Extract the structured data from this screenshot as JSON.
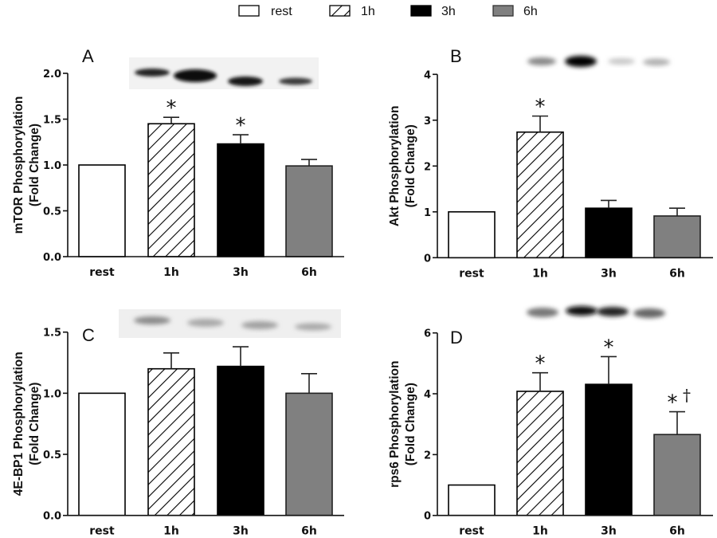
{
  "legend": {
    "items": [
      {
        "label": "rest",
        "fill": "#ffffff",
        "pattern": "none"
      },
      {
        "label": "1h",
        "fill": "#ffffff",
        "pattern": "hatch"
      },
      {
        "label": "3h",
        "fill": "#000000",
        "pattern": "none"
      },
      {
        "label": "6h",
        "fill": "#808080",
        "pattern": "none"
      }
    ],
    "placement": "top-center"
  },
  "chart_data": [
    {
      "type": "bar",
      "panel": "A",
      "title": "",
      "blot_inset": "mTOR western blot bands (rest, 1h, 3h, 6h)",
      "ylabel": [
        "mTOR Phosphorylation",
        "(Fold Change)"
      ],
      "xlabel": "",
      "categories": [
        "rest",
        "1h",
        "3h",
        "6h"
      ],
      "values": [
        1.0,
        1.45,
        1.23,
        0.99
      ],
      "errors": [
        0.0,
        0.07,
        0.1,
        0.07
      ],
      "significance": [
        "",
        "*",
        "*",
        ""
      ],
      "ylim": [
        0,
        2.0
      ],
      "yticks": [
        0.0,
        0.5,
        1.0,
        1.5,
        2.0
      ],
      "ytick_labels": [
        "0.0",
        "0.5",
        "1.0",
        "1.5",
        "2.0"
      ],
      "grid": false
    },
    {
      "type": "bar",
      "panel": "B",
      "title": "",
      "blot_inset": "Akt western blot bands (rest, 1h, 3h, 6h)",
      "ylabel": [
        "Akt Phosphorylation",
        "(Fold Change)"
      ],
      "xlabel": "",
      "categories": [
        "rest",
        "1h",
        "3h",
        "6h"
      ],
      "values": [
        1.0,
        2.74,
        1.08,
        0.91
      ],
      "errors": [
        0.0,
        0.35,
        0.17,
        0.17
      ],
      "significance": [
        "",
        "*",
        "",
        ""
      ],
      "ylim": [
        0,
        4
      ],
      "yticks": [
        0,
        1,
        2,
        3,
        4
      ],
      "ytick_labels": [
        "0",
        "1",
        "2",
        "3",
        "4"
      ],
      "grid": false
    },
    {
      "type": "bar",
      "panel": "C",
      "title": "",
      "blot_inset": "4E-BP1 western blot bands (rest, 1h, 3h, 6h)",
      "ylabel": [
        "4E-BP1 Phosphorylation",
        "(Fold Change)"
      ],
      "xlabel": "",
      "categories": [
        "rest",
        "1h",
        "3h",
        "6h"
      ],
      "values": [
        1.0,
        1.2,
        1.22,
        1.0
      ],
      "errors": [
        0.0,
        0.13,
        0.16,
        0.16
      ],
      "significance": [
        "",
        "",
        "",
        ""
      ],
      "ylim": [
        0,
        1.5
      ],
      "yticks": [
        0.0,
        0.5,
        1.0,
        1.5
      ],
      "ytick_labels": [
        "0.0",
        "0.5",
        "1.0",
        "1.5"
      ],
      "grid": false
    },
    {
      "type": "bar",
      "panel": "D",
      "title": "",
      "blot_inset": "rps6 western blot bands (rest, 1h, 3h, 6h)",
      "ylabel": [
        "rps6 Phosphorylation",
        "(Fold Change)"
      ],
      "xlabel": "",
      "categories": [
        "rest",
        "1h",
        "3h",
        "6h"
      ],
      "values": [
        1.0,
        4.08,
        4.31,
        2.66
      ],
      "errors": [
        0.0,
        0.61,
        0.91,
        0.75
      ],
      "significance": [
        "",
        "*",
        "*",
        "* †"
      ],
      "ylim": [
        0,
        6
      ],
      "yticks": [
        0,
        2,
        4,
        6
      ],
      "ytick_labels": [
        "0",
        "2",
        "4",
        "6"
      ],
      "grid": false
    }
  ]
}
